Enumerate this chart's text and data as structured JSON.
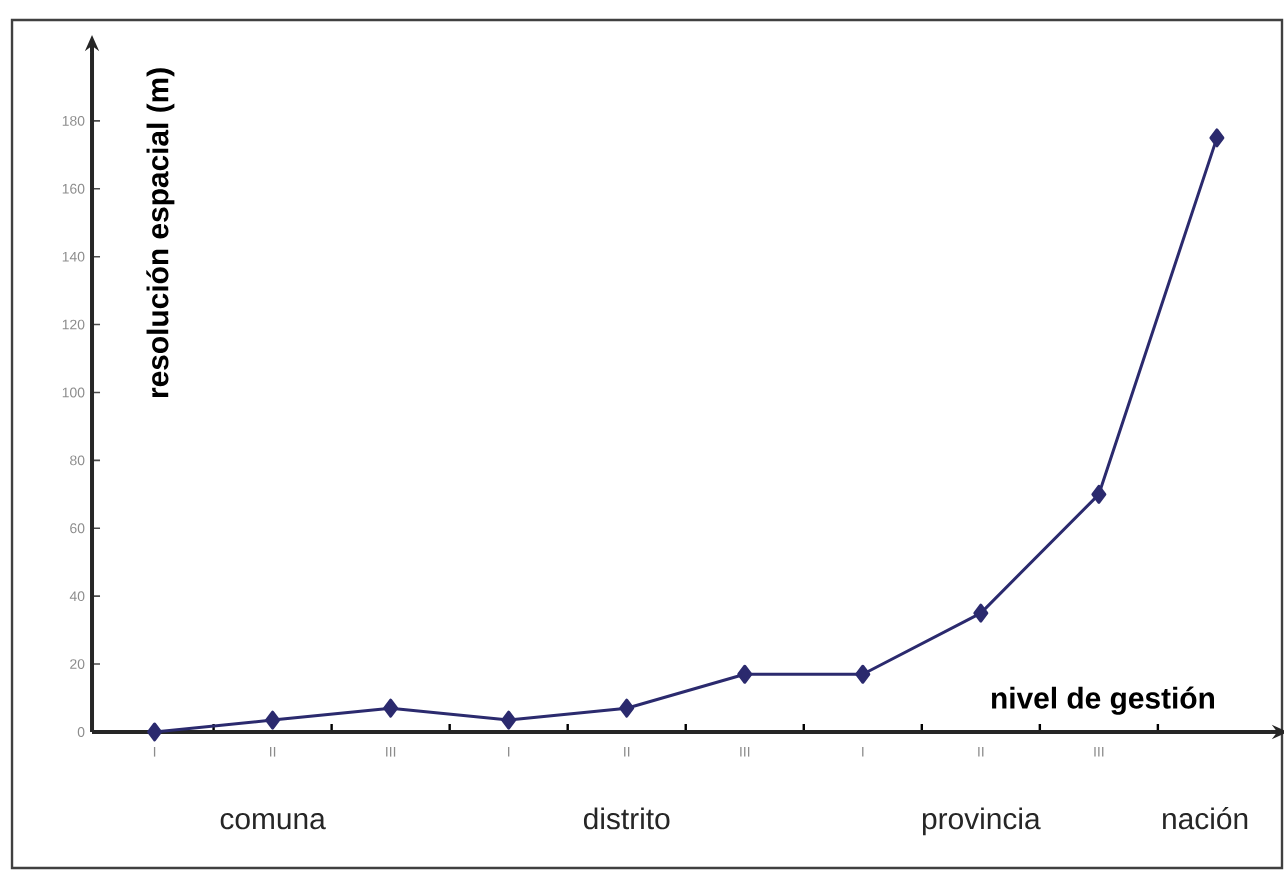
{
  "chart_data": {
    "type": "line",
    "xlabel": "nivel de gestión",
    "ylabel": "resolución espacial (m)",
    "categories": [
      "I",
      "II",
      "III",
      "I",
      "II",
      "III",
      "I",
      "II",
      "III",
      null
    ],
    "series": [
      {
        "color": "#2b2a6e",
        "values": [
          0,
          3.5,
          7,
          3.5,
          7,
          17,
          17,
          35,
          70,
          175
        ]
      }
    ],
    "ylim": [
      0,
      200
    ],
    "yticks": [
      0,
      20,
      40,
      60,
      80,
      100,
      120,
      140,
      160,
      180
    ],
    "annotations": [
      "comuna",
      "distrito",
      "provincia",
      "nación"
    ],
    "marker": "diamond",
    "line_style": "solid",
    "grid": false
  }
}
